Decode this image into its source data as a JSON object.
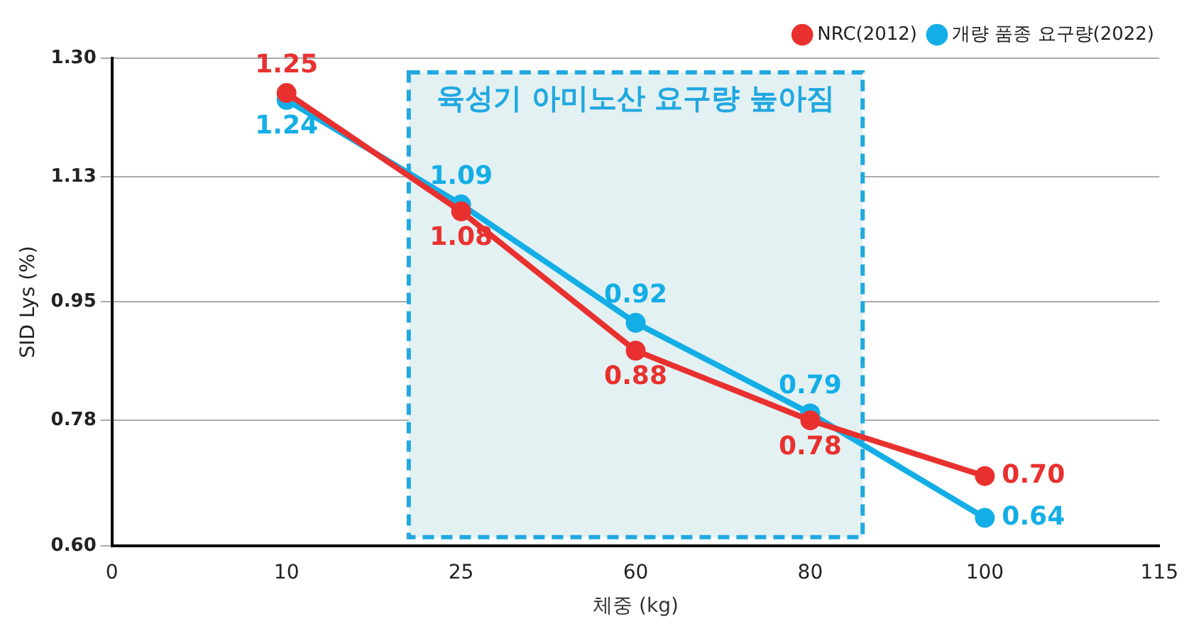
{
  "chart_data": {
    "type": "line",
    "xlabel": "체중 (kg)",
    "ylabel": "SID Lys (%)",
    "categories": [
      "0",
      "10",
      "25",
      "60",
      "80",
      "100",
      "115"
    ],
    "series": [
      {
        "name": "NRC(2012)",
        "color": "#e8312f",
        "values": [
          null,
          1.25,
          1.08,
          0.88,
          0.78,
          0.7,
          null
        ],
        "value_labels": [
          null,
          "1.25",
          "1.08",
          "0.88",
          "0.78",
          "0.70",
          null
        ]
      },
      {
        "name": "개량 품종 요구량(2022)",
        "color": "#14aee6",
        "values": [
          null,
          1.24,
          1.09,
          0.92,
          0.79,
          0.64,
          null
        ],
        "value_labels": [
          null,
          "1.24",
          "1.09",
          "0.92",
          "0.79",
          "0.64",
          null
        ]
      }
    ],
    "ylim": [
      0.6,
      1.3
    ],
    "yticks": [
      {
        "value": 0.6,
        "label": "0.60"
      },
      {
        "value": 0.78,
        "label": "0.78"
      },
      {
        "value": 0.95,
        "label": "0.95"
      },
      {
        "value": 1.13,
        "label": "1.13"
      },
      {
        "value": 1.3,
        "label": "1.30"
      }
    ],
    "bands": [
      {
        "axis": "x",
        "from": "25",
        "to": "80",
        "label": "육성기 아미노산 요구량 높아짐",
        "color": "#e3f1f3"
      }
    ],
    "grid": "y",
    "legend": "top right",
    "marker": "circle",
    "line_style": "solid"
  }
}
